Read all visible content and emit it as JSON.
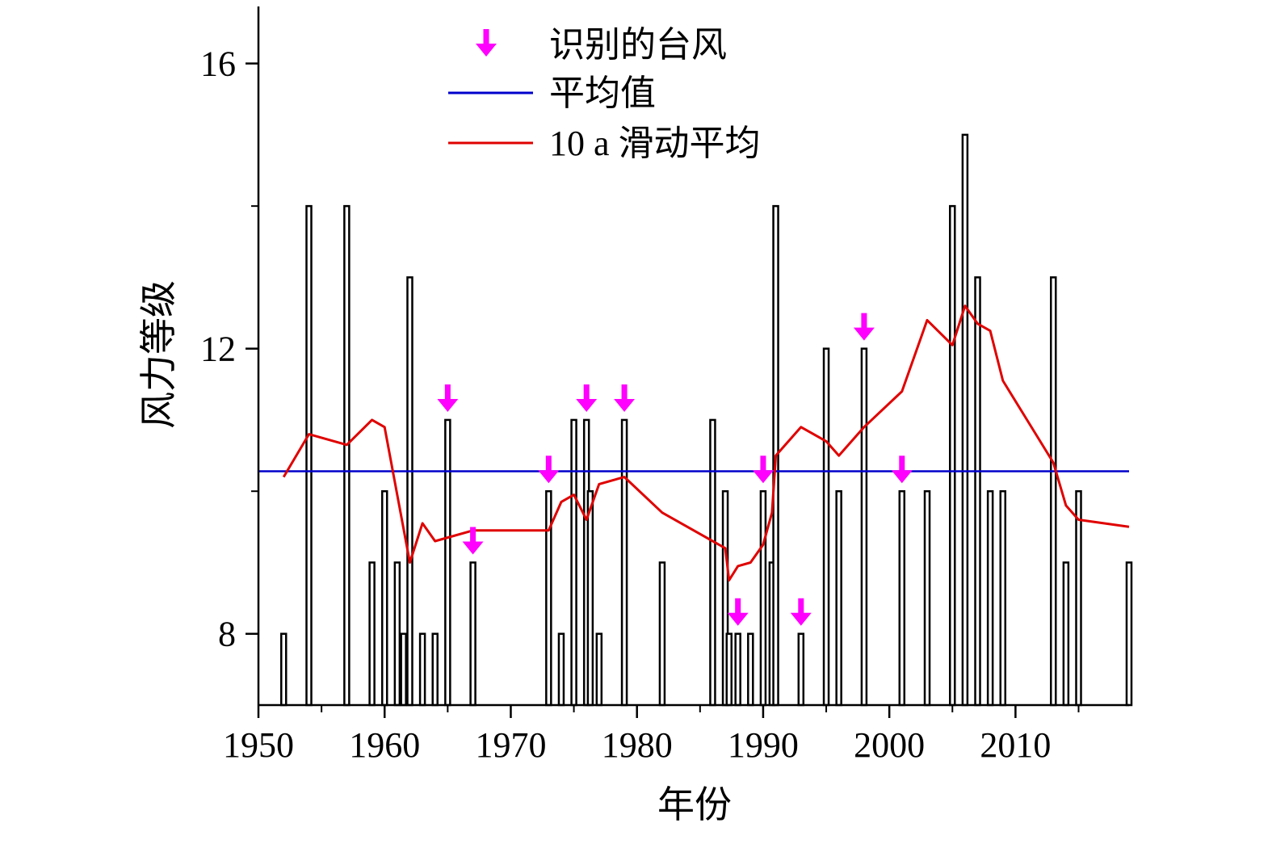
{
  "chart_data": {
    "type": "bar",
    "xlabel": "年份",
    "ylabel": "风力等级",
    "xlim": [
      1950,
      2019
    ],
    "ylim": [
      7,
      16.8
    ],
    "x_ticks": [
      1950,
      1960,
      1970,
      1980,
      1990,
      2000,
      2010
    ],
    "y_ticks": [
      8,
      12,
      16
    ],
    "bars": [
      {
        "x": 1952,
        "y": 8
      },
      {
        "x": 1954,
        "y": 14
      },
      {
        "x": 1957,
        "y": 14
      },
      {
        "x": 1959,
        "y": 9
      },
      {
        "x": 1960,
        "y": 10
      },
      {
        "x": 1961,
        "y": 9
      },
      {
        "x": 1961.5,
        "y": 8
      },
      {
        "x": 1962,
        "y": 13
      },
      {
        "x": 1963,
        "y": 8
      },
      {
        "x": 1964,
        "y": 8
      },
      {
        "x": 1965,
        "y": 11
      },
      {
        "x": 1967,
        "y": 9
      },
      {
        "x": 1973,
        "y": 10
      },
      {
        "x": 1974,
        "y": 8
      },
      {
        "x": 1975,
        "y": 11
      },
      {
        "x": 1976,
        "y": 11
      },
      {
        "x": 1976.3,
        "y": 10
      },
      {
        "x": 1977,
        "y": 8
      },
      {
        "x": 1979,
        "y": 11
      },
      {
        "x": 1982,
        "y": 9
      },
      {
        "x": 1986,
        "y": 11
      },
      {
        "x": 1987,
        "y": 10
      },
      {
        "x": 1987.3,
        "y": 8
      },
      {
        "x": 1988,
        "y": 8
      },
      {
        "x": 1989,
        "y": 8
      },
      {
        "x": 1990,
        "y": 10
      },
      {
        "x": 1990.7,
        "y": 9
      },
      {
        "x": 1991,
        "y": 14
      },
      {
        "x": 1993,
        "y": 8
      },
      {
        "x": 1995,
        "y": 12
      },
      {
        "x": 1996,
        "y": 10
      },
      {
        "x": 1998,
        "y": 12
      },
      {
        "x": 2001,
        "y": 10
      },
      {
        "x": 2003,
        "y": 10
      },
      {
        "x": 2005,
        "y": 14
      },
      {
        "x": 2006,
        "y": 15
      },
      {
        "x": 2007,
        "y": 13
      },
      {
        "x": 2008,
        "y": 10
      },
      {
        "x": 2009,
        "y": 10
      },
      {
        "x": 2013,
        "y": 13
      },
      {
        "x": 2014,
        "y": 9
      },
      {
        "x": 2015,
        "y": 10
      },
      {
        "x": 2019,
        "y": 9
      }
    ],
    "typhoons": [
      {
        "x": 1965,
        "y": 11
      },
      {
        "x": 1967,
        "y": 9
      },
      {
        "x": 1973,
        "y": 10
      },
      {
        "x": 1976,
        "y": 11
      },
      {
        "x": 1979,
        "y": 11
      },
      {
        "x": 1988,
        "y": 8
      },
      {
        "x": 1990,
        "y": 10
      },
      {
        "x": 1993,
        "y": 8
      },
      {
        "x": 1998,
        "y": 12
      },
      {
        "x": 2001,
        "y": 10
      }
    ],
    "mean": 10.28,
    "moving_avg": [
      [
        1952,
        10.2
      ],
      [
        1954,
        10.8
      ],
      [
        1957,
        10.65
      ],
      [
        1959,
        11.0
      ],
      [
        1960,
        10.9
      ],
      [
        1962,
        9.0
      ],
      [
        1963,
        9.55
      ],
      [
        1964,
        9.3
      ],
      [
        1967,
        9.45
      ],
      [
        1973,
        9.45
      ],
      [
        1974,
        9.85
      ],
      [
        1975,
        9.95
      ],
      [
        1976,
        9.6
      ],
      [
        1977,
        10.1
      ],
      [
        1979,
        10.2
      ],
      [
        1982,
        9.7
      ],
      [
        1987,
        9.2
      ],
      [
        1987.3,
        8.75
      ],
      [
        1988,
        8.95
      ],
      [
        1989,
        9.0
      ],
      [
        1990,
        9.25
      ],
      [
        1990.7,
        9.7
      ],
      [
        1991,
        10.5
      ],
      [
        1993,
        10.9
      ],
      [
        1995,
        10.7
      ],
      [
        1996,
        10.5
      ],
      [
        1998,
        10.9
      ],
      [
        2001,
        11.4
      ],
      [
        2003,
        12.4
      ],
      [
        2005,
        12.05
      ],
      [
        2006,
        12.6
      ],
      [
        2007,
        12.35
      ],
      [
        2008,
        12.25
      ],
      [
        2009,
        11.55
      ],
      [
        2013,
        10.4
      ],
      [
        2014,
        9.8
      ],
      [
        2015,
        9.6
      ],
      [
        2019,
        9.5
      ]
    ],
    "legend": {
      "position": "top-center",
      "entries": [
        {
          "label": "识别的台风",
          "color": "#ff00ff",
          "marker": "arrow-down"
        },
        {
          "label": "平均值",
          "color": "#0000cc",
          "marker": "line"
        },
        {
          "label": "10 a 滑动平均",
          "color": "#e00000",
          "marker": "line"
        }
      ]
    },
    "colors": {
      "bar_edge": "#000000",
      "mean": "#0000cc",
      "moving_avg": "#e00000",
      "typhoon": "#ff00ff"
    }
  }
}
